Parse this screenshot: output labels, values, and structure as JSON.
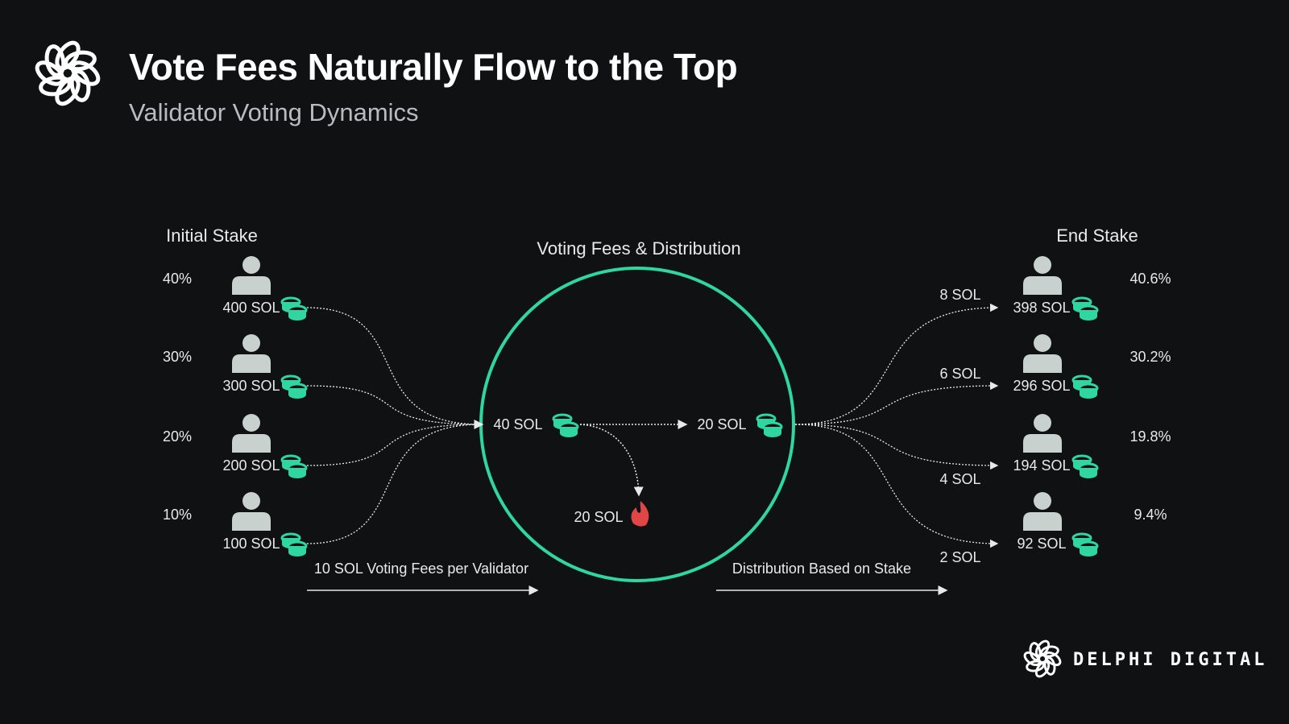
{
  "header": {
    "title": "Vote Fees Naturally Flow to the Top",
    "subtitle": "Validator Voting Dynamics"
  },
  "left": {
    "title": "Initial Stake",
    "validators": [
      {
        "percent": "40%",
        "stake": "400 SOL"
      },
      {
        "percent": "30%",
        "stake": "300 SOL"
      },
      {
        "percent": "20%",
        "stake": "200 SOL"
      },
      {
        "percent": "10%",
        "stake": "100 SOL"
      }
    ],
    "arrow_label": "10 SOL Voting Fees per Validator"
  },
  "center": {
    "title": "Voting Fees & Distribution",
    "collected": "40 SOL",
    "distributed": "20 SOL",
    "burned": "20 SOL"
  },
  "right": {
    "title": "End Stake",
    "validators": [
      {
        "reward": "8 SOL",
        "stake": "398 SOL",
        "percent": "40.6%"
      },
      {
        "reward": "6 SOL",
        "stake": "296 SOL",
        "percent": "30.2%"
      },
      {
        "reward": "4 SOL",
        "stake": "194 SOL",
        "percent": "19.8%"
      },
      {
        "reward": "2 SOL",
        "stake": "92 SOL",
        "percent": "9.4%"
      }
    ],
    "arrow_label": "Distribution Based on Stake"
  },
  "brand": {
    "name": "DELPHI DIGITAL"
  },
  "colors": {
    "accent": "#2fd6a0",
    "burn": "#e04646",
    "person": "#c9d1cf",
    "background": "#0f1113"
  }
}
